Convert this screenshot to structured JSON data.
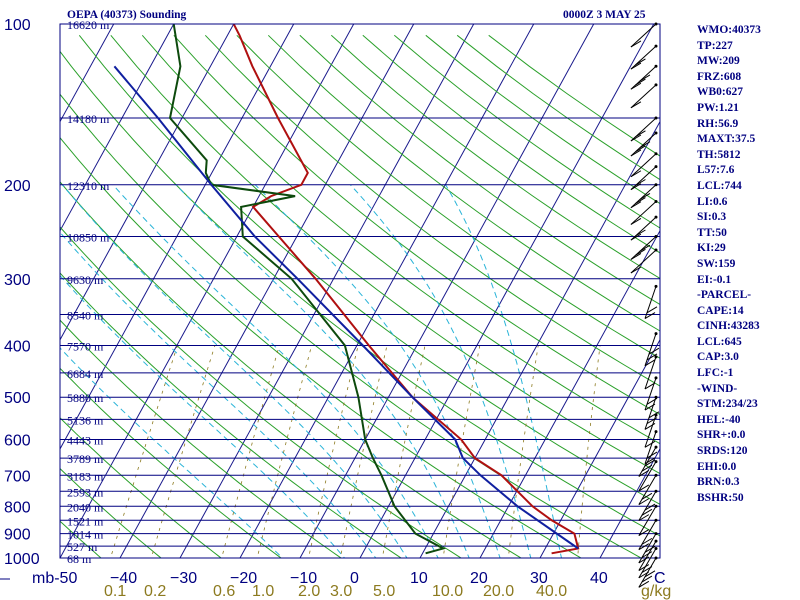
{
  "chart_data": {
    "type": "line",
    "title": "OEPA (40373) Sounding",
    "time_label": "0000Z  3 MAY 25",
    "pressure_levels": [
      100,
      200,
      300,
      400,
      500,
      600,
      700,
      800,
      900,
      1000
    ],
    "height_labels": [
      {
        "p": 100,
        "label": "16620 m"
      },
      {
        "p": 150,
        "label": "14180 m"
      },
      {
        "p": 200,
        "label": "12310 m"
      },
      {
        "p": 250,
        "label": "10850 m"
      },
      {
        "p": 300,
        "label": "9630 m"
      },
      {
        "p": 350,
        "label": "8540 m"
      },
      {
        "p": 400,
        "label": "7570 m"
      },
      {
        "p": 450,
        "label": "6684 m"
      },
      {
        "p": 500,
        "label": "5880 m"
      },
      {
        "p": 550,
        "label": "5136 m"
      },
      {
        "p": 600,
        "label": "4443 m"
      },
      {
        "p": 650,
        "label": "3789 m"
      },
      {
        "p": 700,
        "label": "3183 m"
      },
      {
        "p": 750,
        "label": "2593 m"
      },
      {
        "p": 800,
        "label": "2040 m"
      },
      {
        "p": 850,
        "label": "1521 m"
      },
      {
        "p": 900,
        "label": "1014 m"
      },
      {
        "p": 950,
        "label": "527 m"
      },
      {
        "p": 1000,
        "label": "68 m"
      }
    ],
    "temp_ticks": [
      -50,
      -40,
      -30,
      -20,
      -10,
      0,
      10,
      20,
      30,
      40
    ],
    "temp_tick_labels": [
      "mb-50",
      "−40",
      "−30",
      "−20",
      "−10",
      "0",
      "10",
      "20",
      "30",
      "40"
    ],
    "corner_label": "C",
    "xlim": [
      -50,
      50
    ],
    "pressure_range": [
      1000,
      100
    ],
    "mixing_ratio_labels": [
      "0.1",
      "0.2",
      "0.6",
      "1.0",
      "2.0",
      "3.0",
      "5.0",
      "10.0",
      "20.0",
      "40.0",
      "g/kg"
    ],
    "series": [
      {
        "name": "temperature",
        "color": "#b01010",
        "points": [
          {
            "p": 980,
            "t": 31.5
          },
          {
            "p": 960,
            "t": 35.5
          },
          {
            "p": 900,
            "t": 33.5
          },
          {
            "p": 850,
            "t": 28.5
          },
          {
            "p": 800,
            "t": 24.0
          },
          {
            "p": 700,
            "t": 16.0
          },
          {
            "p": 650,
            "t": 10.0
          },
          {
            "p": 600,
            "t": 6.0
          },
          {
            "p": 500,
            "t": -6.0
          },
          {
            "p": 400,
            "t": -18.0
          },
          {
            "p": 300,
            "t": -33.0
          },
          {
            "p": 250,
            "t": -43.0
          },
          {
            "p": 220,
            "t": -50.0
          },
          {
            "p": 210,
            "t": -48.0
          },
          {
            "p": 200,
            "t": -44.0
          },
          {
            "p": 190,
            "t": -44.0
          },
          {
            "p": 150,
            "t": -54.0
          },
          {
            "p": 120,
            "t": -63.0
          },
          {
            "p": 105,
            "t": -68.0
          },
          {
            "p": 100,
            "t": -70.0
          }
        ]
      },
      {
        "name": "dewpoint",
        "color": "#0d4a0d",
        "points": [
          {
            "p": 980,
            "t": 10.5
          },
          {
            "p": 960,
            "t": 13.0
          },
          {
            "p": 900,
            "t": 7.0
          },
          {
            "p": 800,
            "t": 1.0
          },
          {
            "p": 700,
            "t": -4.0
          },
          {
            "p": 650,
            "t": -7.0
          },
          {
            "p": 600,
            "t": -10.0
          },
          {
            "p": 500,
            "t": -15.0
          },
          {
            "p": 400,
            "t": -22.0
          },
          {
            "p": 300,
            "t": -37.0
          },
          {
            "p": 250,
            "t": -49.0
          },
          {
            "p": 220,
            "t": -52.0
          },
          {
            "p": 210,
            "t": -44.0
          },
          {
            "p": 200,
            "t": -59.0
          },
          {
            "p": 190,
            "t": -61.0
          },
          {
            "p": 180,
            "t": -62.0
          },
          {
            "p": 150,
            "t": -72.0
          },
          {
            "p": 120,
            "t": -75.0
          },
          {
            "p": 100,
            "t": -80.0
          }
        ]
      },
      {
        "name": "parcel",
        "color": "#1020a0",
        "points": [
          {
            "p": 960,
            "t": 35.5
          },
          {
            "p": 800,
            "t": 21.5
          },
          {
            "p": 700,
            "t": 12.5
          },
          {
            "p": 650,
            "t": 8.0
          },
          {
            "p": 600,
            "t": 5.0
          },
          {
            "p": 500,
            "t": -6.0
          },
          {
            "p": 400,
            "t": -19.0
          },
          {
            "p": 300,
            "t": -36.0
          },
          {
            "p": 250,
            "t": -47.0
          },
          {
            "p": 200,
            "t": -59.0
          },
          {
            "p": 150,
            "t": -74.0
          },
          {
            "p": 120,
            "t": -86.0
          }
        ]
      }
    ],
    "wind_barb_pressures": [
      100,
      110,
      120,
      130,
      150,
      160,
      175,
      185,
      200,
      215,
      230,
      250,
      265,
      310,
      380,
      420,
      460,
      500,
      540,
      580,
      620,
      660,
      700,
      750,
      800,
      850,
      900,
      930,
      960,
      1000
    ]
  },
  "indices": [
    "WMO:40373",
    "TP:227",
    "MW:209",
    "FRZ:608",
    "WB0:627",
    "PW:1.21",
    "RH:56.9",
    "MAXT:37.5",
    "TH:5812",
    "L57:7.6",
    "LCL:744",
    "LI:0.6",
    "SI:0.3",
    "TT:50",
    "KI:29",
    "SW:159",
    "EI:-0.1",
    "-PARCEL-",
    "CAPE:14",
    "CINH:43283",
    "LCL:645",
    "CAP:3.0",
    "LFC:-1",
    "-WIND-",
    "STM:234/23",
    "HEL:-40",
    "SHR+:0.0",
    "SRDS:120",
    "EHI:0.0",
    "BRN:0.3",
    "BSHR:50"
  ],
  "colors": {
    "axis": "#000080",
    "isotherm": "#1a1a8c",
    "dry_adiabat": "#2aa02a",
    "moist_adiabat": "#2ab4d8",
    "mixing_ratio": "#8c7a1f",
    "temperature": "#b01010",
    "dewpoint": "#0d4a0d",
    "parcel": "#1020a0"
  }
}
